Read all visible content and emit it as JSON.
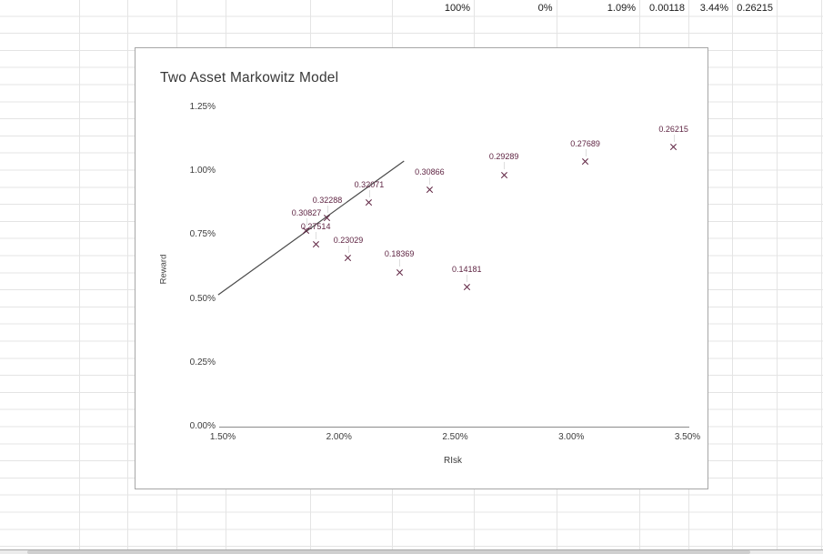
{
  "spreadsheet": {
    "top_row_cells": [
      "100%",
      "0%",
      "1.09%",
      "0.00118",
      "3.44%",
      "0.26215"
    ]
  },
  "chart_data": {
    "type": "scatter",
    "title": "Two Asset Markowitz Model",
    "xlabel": "RIsk",
    "ylabel": "Reward",
    "grid": "off",
    "legend": "none",
    "x_axis": {
      "min_pct": 1.5,
      "max_pct": 3.5,
      "tick_values": [
        1.5,
        2.0,
        2.5,
        3.0,
        3.5
      ],
      "tick_labels": [
        "1.50%",
        "2.00%",
        "2.50%",
        "3.00%",
        "3.50%"
      ]
    },
    "y_axis": {
      "min_pct": 0,
      "max_pct": 1.25,
      "tick_values": [
        0,
        0.25,
        0.5,
        0.75,
        1.0,
        1.25
      ],
      "tick_labels": [
        "0.00%",
        "0.25%",
        "0.50%",
        "0.75%",
        "1.00%",
        "1.25%"
      ]
    },
    "series": [
      {
        "name": "portfolio-frontier-points",
        "marker": "x",
        "points": [
          {
            "risk_pct": 3.44,
            "reward_pct": 1.093,
            "label": "0.26215"
          },
          {
            "risk_pct": 3.06,
            "reward_pct": 1.036,
            "label": "0.27689"
          },
          {
            "risk_pct": 2.71,
            "reward_pct": 0.986,
            "label": "0.29289"
          },
          {
            "risk_pct": 2.39,
            "reward_pct": 0.926,
            "label": "0.30866"
          },
          {
            "risk_pct": 2.13,
            "reward_pct": 0.876,
            "label": "0.32071"
          },
          {
            "risk_pct": 1.95,
            "reward_pct": 0.816,
            "label": "0.32288"
          },
          {
            "risk_pct": 1.86,
            "reward_pct": 0.766,
            "label": "0.30827"
          },
          {
            "risk_pct": 1.9,
            "reward_pct": 0.712,
            "label": "0.27514"
          },
          {
            "risk_pct": 2.04,
            "reward_pct": 0.659,
            "label": "0.23029"
          },
          {
            "risk_pct": 2.26,
            "reward_pct": 0.605,
            "label": "0.18369"
          },
          {
            "risk_pct": 2.55,
            "reward_pct": 0.545,
            "label": "0.14181"
          }
        ]
      }
    ],
    "trend_line": {
      "x1_pct": 1.48,
      "y1_pct": 0.516,
      "x2_pct": 2.28,
      "y2_pct": 1.04
    }
  },
  "colors": {
    "marker": "#5f2543",
    "data_label": "#5f2543",
    "trend_line": "#4a4a4a",
    "axis_text": "#3d3d3d",
    "axis_line": "#8c8c8c",
    "grid_line": "#e4e4e4",
    "chart_border": "#a6a6a6"
  }
}
